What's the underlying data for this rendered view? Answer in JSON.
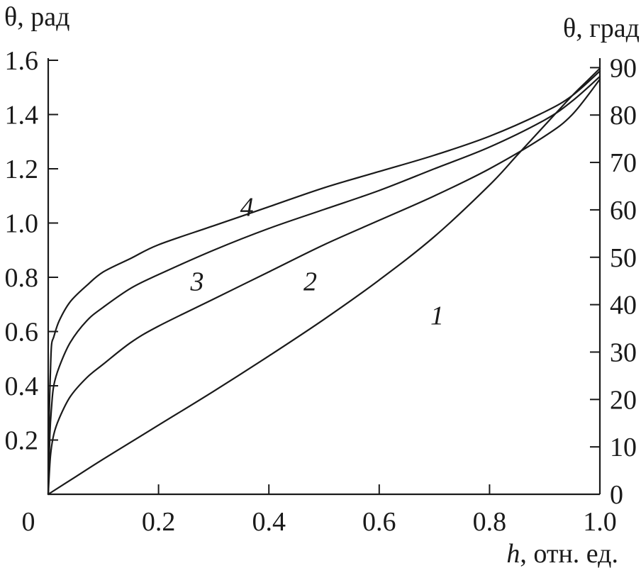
{
  "chart_data": {
    "type": "line",
    "xlabel": {
      "italic": "h",
      "rest": ", отн. ед."
    },
    "ylabel_left": "θ, рад",
    "ylabel_right": "θ, град",
    "xlim": [
      0,
      1.0
    ],
    "ylim_left": [
      0,
      1.6
    ],
    "ylim_right": [
      0,
      92
    ],
    "grid": false,
    "x_ticks": [
      {
        "value": 0,
        "label": "0"
      },
      {
        "value": 0.2,
        "label": "0.2"
      },
      {
        "value": 0.4,
        "label": "0.4"
      },
      {
        "value": 0.6,
        "label": "0.6"
      },
      {
        "value": 0.8,
        "label": "0.8"
      },
      {
        "value": 1.0,
        "label": "1.0"
      }
    ],
    "y_left_ticks": [
      {
        "value": 0.2,
        "label": "0.2"
      },
      {
        "value": 0.4,
        "label": "0.4"
      },
      {
        "value": 0.6,
        "label": "0.6"
      },
      {
        "value": 0.8,
        "label": "0.8"
      },
      {
        "value": 1.0,
        "label": "1.0"
      },
      {
        "value": 1.2,
        "label": "1.2"
      },
      {
        "value": 1.4,
        "label": "1.4"
      },
      {
        "value": 1.6,
        "label": "1.6"
      }
    ],
    "y_right_ticks": [
      {
        "value": 0,
        "label": "0"
      },
      {
        "value": 10,
        "label": "10"
      },
      {
        "value": 20,
        "label": "20"
      },
      {
        "value": 30,
        "label": "30"
      },
      {
        "value": 40,
        "label": "40"
      },
      {
        "value": 50,
        "label": "50"
      },
      {
        "value": 60,
        "label": "60"
      },
      {
        "value": 70,
        "label": "70"
      },
      {
        "value": 80,
        "label": "80"
      },
      {
        "value": 90,
        "label": "90"
      }
    ],
    "series": [
      {
        "label": "1",
        "label_at": [
          0.705,
          0.66
        ],
        "x": [
          0,
          0.05,
          0.1,
          0.2,
          0.3,
          0.4,
          0.5,
          0.6,
          0.7,
          0.8,
          0.85,
          0.9,
          0.95,
          0.98,
          1.0
        ],
        "y": [
          0,
          0.065,
          0.13,
          0.255,
          0.38,
          0.51,
          0.645,
          0.79,
          0.95,
          1.14,
          1.25,
          1.36,
          1.47,
          1.53,
          1.57
        ]
      },
      {
        "label": "2",
        "label_at": [
          0.475,
          0.785
        ],
        "x": [
          0,
          0.004,
          0.01,
          0.02,
          0.04,
          0.07,
          0.1,
          0.15,
          0.2,
          0.3,
          0.4,
          0.5,
          0.6,
          0.7,
          0.8,
          0.9,
          0.95,
          1.0
        ],
        "y": [
          0.0,
          0.14,
          0.22,
          0.28,
          0.36,
          0.43,
          0.48,
          0.56,
          0.62,
          0.72,
          0.82,
          0.92,
          1.01,
          1.1,
          1.2,
          1.32,
          1.4,
          1.53
        ]
      },
      {
        "label": "3",
        "label_at": [
          0.27,
          0.785
        ],
        "x": [
          0,
          0.003,
          0.006,
          0.01,
          0.02,
          0.04,
          0.07,
          0.1,
          0.15,
          0.2,
          0.3,
          0.4,
          0.5,
          0.6,
          0.7,
          0.8,
          0.9,
          0.95,
          1.0
        ],
        "y": [
          0.0,
          0.22,
          0.32,
          0.4,
          0.47,
          0.56,
          0.64,
          0.69,
          0.76,
          0.81,
          0.9,
          0.98,
          1.05,
          1.12,
          1.2,
          1.28,
          1.38,
          1.45,
          1.54
        ]
      },
      {
        "label": "4",
        "label_at": [
          0.36,
          1.06
        ],
        "x": [
          0,
          0.002,
          0.004,
          0.006,
          0.01,
          0.02,
          0.04,
          0.07,
          0.1,
          0.15,
          0.2,
          0.3,
          0.4,
          0.5,
          0.6,
          0.7,
          0.8,
          0.9,
          0.95,
          1.0
        ],
        "y": [
          0.0,
          0.3,
          0.45,
          0.55,
          0.58,
          0.64,
          0.71,
          0.77,
          0.82,
          0.87,
          0.92,
          0.99,
          1.06,
          1.13,
          1.19,
          1.25,
          1.32,
          1.41,
          1.47,
          1.56
        ]
      }
    ]
  }
}
